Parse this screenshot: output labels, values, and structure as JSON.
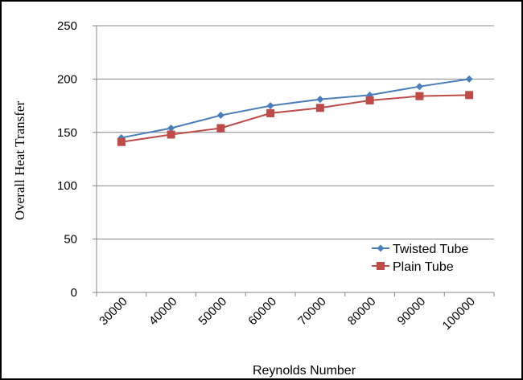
{
  "chart_data": {
    "type": "line",
    "xlabel": "Reynolds Number",
    "ylabel": "Overall Heat Transfer",
    "ylim": [
      0,
      250
    ],
    "yticks": [
      0,
      50,
      100,
      150,
      200,
      250
    ],
    "categories": [
      "30000",
      "40000",
      "50000",
      "60000",
      "70000",
      "80000",
      "90000",
      "100000"
    ],
    "grid": "horizontal",
    "legend_position": "bottom-right",
    "series": [
      {
        "name": "Twisted Tube",
        "marker": "diamond",
        "color": "#4A7EBB",
        "values": [
          145,
          154,
          166,
          175,
          181,
          185,
          193,
          200
        ]
      },
      {
        "name": "Plain Tube",
        "marker": "square",
        "color": "#BE4B48",
        "values": [
          141,
          148,
          154,
          168,
          173,
          180,
          184,
          185
        ]
      }
    ]
  }
}
